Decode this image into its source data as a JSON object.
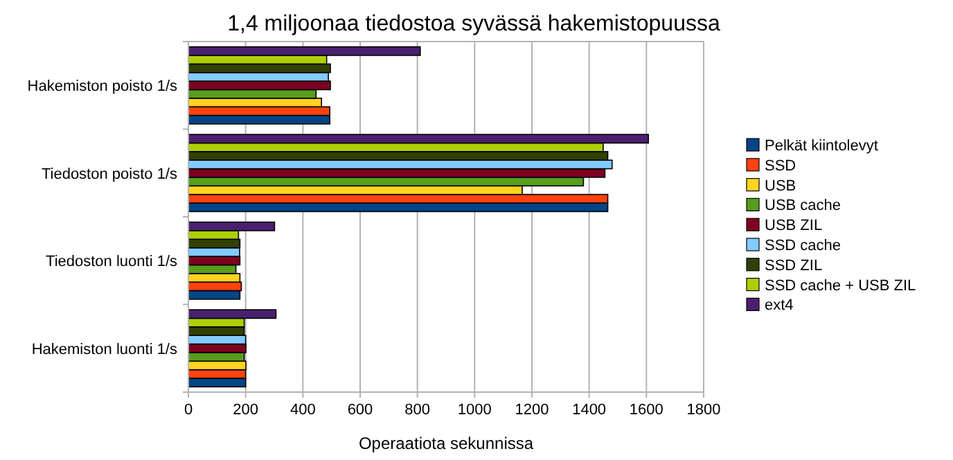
{
  "chart_data": {
    "type": "bar",
    "orientation": "horizontal",
    "title": "1,4 miljoonaa tiedostoa syvässä hakemistopuussa",
    "xlabel": "Operaatiota sekunnissa",
    "categories": [
      "Hakemiston poisto 1/s",
      "Tiedoston poisto 1/s",
      "Tiedoston luonti 1/s",
      "Hakemiston luonti 1/s"
    ],
    "series": [
      {
        "name": "Pelkät kiintolevyt",
        "color": "#004586",
        "values": [
          494,
          1465,
          180,
          200
        ]
      },
      {
        "name": "SSD",
        "color": "#ff420e",
        "values": [
          494,
          1465,
          185,
          200
        ]
      },
      {
        "name": "USB",
        "color": "#ffd320",
        "values": [
          465,
          1166,
          180,
          201
        ]
      },
      {
        "name": "USB cache",
        "color": "#579d1c",
        "values": [
          446,
          1380,
          166,
          195
        ]
      },
      {
        "name": "USB ZIL",
        "color": "#7e0021",
        "values": [
          496,
          1455,
          180,
          201
        ]
      },
      {
        "name": "SSD cache",
        "color": "#83caff",
        "values": [
          489,
          1480,
          179,
          200
        ]
      },
      {
        "name": "SSD ZIL",
        "color": "#314004",
        "values": [
          496,
          1465,
          180,
          195
        ]
      },
      {
        "name": "SSD cache + USB ZIL",
        "color": "#aecf00",
        "values": [
          483,
          1449,
          175,
          195
        ]
      },
      {
        "name": "ext4",
        "color": "#4b1f6f",
        "values": [
          810,
          1607,
          301,
          306
        ]
      }
    ],
    "xlim": [
      0,
      1800
    ],
    "xticks": [
      0,
      200,
      400,
      600,
      800,
      1000,
      1200,
      1400,
      1600,
      1800
    ],
    "grid": "x",
    "legend": "right"
  }
}
